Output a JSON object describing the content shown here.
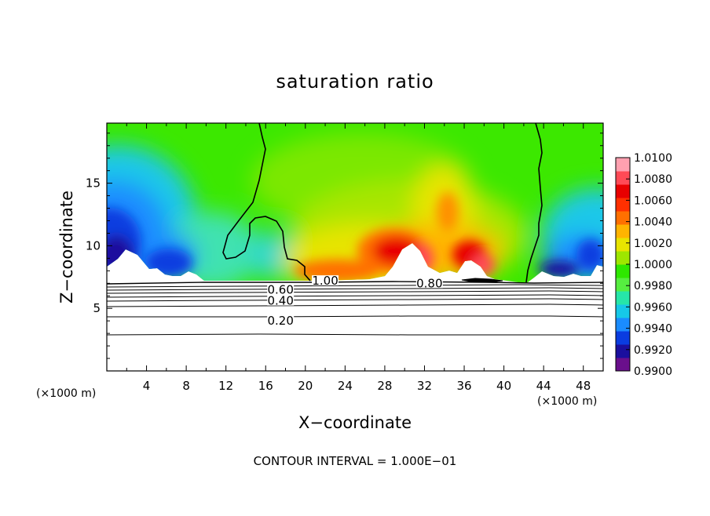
{
  "chart_data": {
    "type": "heatmap",
    "title": "saturation ratio",
    "xlabel": "X−coordinate",
    "ylabel": "Z−coordinate",
    "x_unit": "(×1000 m)",
    "z_unit": "(×1000 m)",
    "xlim": [
      0,
      50
    ],
    "ylim": [
      0,
      19.8
    ],
    "x_ticks": [
      4,
      8,
      12,
      16,
      20,
      24,
      28,
      32,
      36,
      40,
      44,
      48
    ],
    "y_ticks": [
      5,
      10,
      15
    ],
    "footer": "CONTOUR INTERVAL = 1.000E−01",
    "colorbar": {
      "range": [
        0.99,
        1.01
      ],
      "tick_labels": [
        "1.0100",
        "1.0080",
        "1.0060",
        "1.0040",
        "1.0020",
        "1.0000",
        "0.9980",
        "0.9960",
        "0.9940",
        "0.9920",
        "0.9900"
      ],
      "colors": [
        "#6a0f8c",
        "#1a0f9e",
        "#0a3ce0",
        "#1a8cff",
        "#16c8e8",
        "#26e6a8",
        "#56ee40",
        "#2ee800",
        "#9ee600",
        "#e8e400",
        "#ffb400",
        "#ff7000",
        "#ff3000",
        "#e80000",
        "#ff4a56",
        "#ffa0b0"
      ]
    },
    "contour_labels": [
      {
        "text": "1.00",
        "x": 22.0,
        "z": 7.2
      },
      {
        "text": "0.80",
        "x": 32.5,
        "z": 7.0
      },
      {
        "text": "0.60",
        "x": 17.5,
        "z": 6.5
      },
      {
        "text": "0.40",
        "x": 17.5,
        "z": 5.6
      },
      {
        "text": "0.20",
        "x": 17.5,
        "z": 4.0
      }
    ],
    "contour_levels": [
      0.2,
      0.4,
      0.6,
      0.8,
      1.0
    ]
  }
}
